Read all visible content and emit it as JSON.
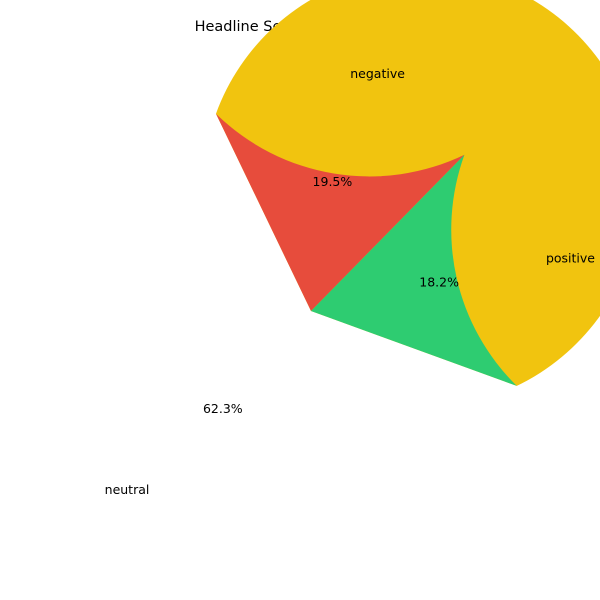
{
  "chart_data": {
    "type": "pie",
    "title": "Headline Sentiment Distribution",
    "slices": [
      {
        "label": "neutral",
        "value": 62.3,
        "pct_label": "62.3%",
        "color": "#f1c40f"
      },
      {
        "label": "negative",
        "value": 19.5,
        "pct_label": "19.5%",
        "color": "#e74c3c"
      },
      {
        "label": "positive",
        "value": 18.2,
        "pct_label": "18.2%",
        "color": "#2ecc71"
      }
    ],
    "start_angle_deg": -20,
    "direction": "counterclockwise"
  }
}
